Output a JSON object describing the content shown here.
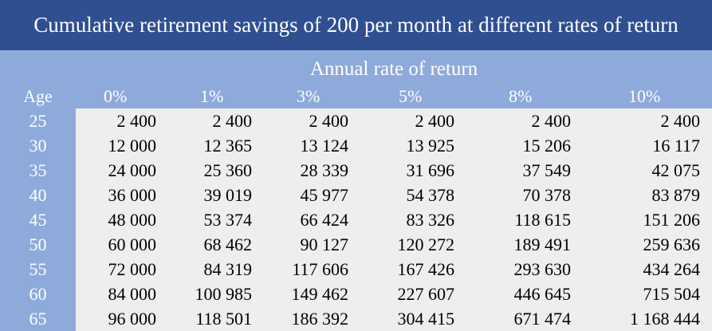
{
  "title": "Cumulative retirement savings of 200 per month at different rates of return",
  "subheader": "Annual rate of return",
  "age_label": "Age",
  "rates": [
    "0%",
    "1%",
    "3%",
    "5%",
    "8%",
    "10%"
  ],
  "rows": [
    {
      "age": "25",
      "values": [
        "2 400",
        "2 400",
        "2 400",
        "2 400",
        "2 400",
        "2 400"
      ]
    },
    {
      "age": "30",
      "values": [
        "12 000",
        "12 365",
        "13 124",
        "13 925",
        "15 206",
        "16 117"
      ]
    },
    {
      "age": "35",
      "values": [
        "24 000",
        "25 360",
        "28 339",
        "31 696",
        "37 549",
        "42 075"
      ]
    },
    {
      "age": "40",
      "values": [
        "36 000",
        "39 019",
        "45 977",
        "54 378",
        "70 378",
        "83 879"
      ]
    },
    {
      "age": "45",
      "values": [
        "48 000",
        "53 374",
        "66 424",
        "83 326",
        "118 615",
        "151 206"
      ]
    },
    {
      "age": "50",
      "values": [
        "60 000",
        "68 462",
        "90 127",
        "120 272",
        "189 491",
        "259 636"
      ]
    },
    {
      "age": "55",
      "values": [
        "72 000",
        "84 319",
        "117 606",
        "167 426",
        "293 630",
        "434 264"
      ]
    },
    {
      "age": "60",
      "values": [
        "84 000",
        "100 985",
        "149 462",
        "227 607",
        "446 645",
        "715 504"
      ]
    },
    {
      "age": "65",
      "values": [
        "96 000",
        "118 501",
        "186 392",
        "304 415",
        "671 474",
        "1 168 444"
      ]
    }
  ],
  "colors": {
    "title_bg": "#2f4f91",
    "header_bg": "#8eaadb",
    "panel_bg": "#eeeeee"
  }
}
